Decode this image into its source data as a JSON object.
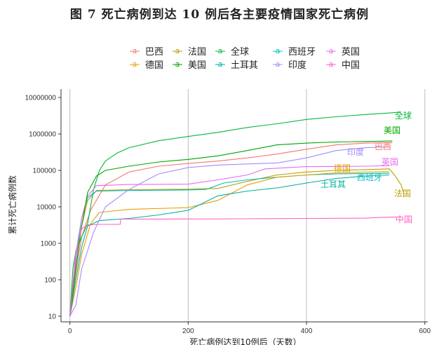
{
  "chart_data": {
    "type": "line",
    "title": "图 7  死亡病例到达 10 例后各主要疫情国家死亡病例",
    "xlabel": "死亡病例达到10例后（天数）",
    "ylabel": "累计死亡病例数",
    "xlim": [
      -15,
      605
    ],
    "ylim": [
      7,
      17000000
    ],
    "yscale": "log",
    "x_ticks": [
      0,
      200,
      400,
      600
    ],
    "y_ticks": [
      10,
      100,
      1000,
      10000,
      100000,
      1000000,
      10000000
    ],
    "y_tick_labels": [
      "10",
      "100",
      "1000",
      "10000",
      "100000",
      "1000000",
      "10000000"
    ],
    "grid": "vertical",
    "legend_position": "top",
    "series": [
      {
        "name": "巴西",
        "color": "#F8766D",
        "points": [
          [
            0,
            10
          ],
          [
            10,
            150
          ],
          [
            20,
            1500
          ],
          [
            35,
            8000
          ],
          [
            60,
            40000
          ],
          [
            100,
            90000
          ],
          [
            150,
            130000
          ],
          [
            200,
            155000
          ],
          [
            250,
            180000
          ],
          [
            300,
            220000
          ],
          [
            350,
            280000
          ],
          [
            400,
            380000
          ],
          [
            450,
            500000
          ],
          [
            500,
            560000
          ],
          [
            545,
            580000
          ]
        ],
        "end_label": "巴西"
      },
      {
        "name": "法国",
        "color": "#B79F00",
        "points": [
          [
            0,
            10
          ],
          [
            10,
            300
          ],
          [
            20,
            3000
          ],
          [
            30,
            15000
          ],
          [
            45,
            28000
          ],
          [
            100,
            29500
          ],
          [
            200,
            30500
          ],
          [
            250,
            32000
          ],
          [
            300,
            50000
          ],
          [
            350,
            75000
          ],
          [
            400,
            90000
          ],
          [
            450,
            100000
          ],
          [
            500,
            105000
          ],
          [
            540,
            110000
          ],
          [
            550,
            70000
          ],
          [
            560,
            40000
          ],
          [
            565,
            22000
          ]
        ],
        "end_label": "法国"
      },
      {
        "name": "全球",
        "color": "#00BA38",
        "points": [
          [
            0,
            10
          ],
          [
            5,
            200
          ],
          [
            10,
            600
          ],
          [
            20,
            1500
          ],
          [
            30,
            3500
          ],
          [
            40,
            30000
          ],
          [
            50,
            100000
          ],
          [
            60,
            180000
          ],
          [
            80,
            300000
          ],
          [
            100,
            420000
          ],
          [
            150,
            650000
          ],
          [
            200,
            850000
          ],
          [
            250,
            1100000
          ],
          [
            300,
            1500000
          ],
          [
            350,
            1900000
          ],
          [
            400,
            2500000
          ],
          [
            450,
            2950000
          ],
          [
            500,
            3400000
          ],
          [
            545,
            3800000
          ],
          [
            560,
            4000000
          ]
        ],
        "end_label": "全球"
      },
      {
        "name": "西班牙",
        "color": "#00BFC4",
        "points": [
          [
            0,
            10
          ],
          [
            10,
            500
          ],
          [
            20,
            5000
          ],
          [
            30,
            18000
          ],
          [
            45,
            27000
          ],
          [
            100,
            28000
          ],
          [
            200,
            29000
          ],
          [
            230,
            30000
          ],
          [
            260,
            45000
          ],
          [
            300,
            55000
          ],
          [
            350,
            65000
          ],
          [
            400,
            75000
          ],
          [
            450,
            80000
          ],
          [
            500,
            82000
          ],
          [
            540,
            83000
          ]
        ],
        "end_label": "西班牙"
      },
      {
        "name": "英国",
        "color": "#E76BF3",
        "points": [
          [
            0,
            10
          ],
          [
            10,
            300
          ],
          [
            20,
            5000
          ],
          [
            30,
            20000
          ],
          [
            45,
            38000
          ],
          [
            100,
            41000
          ],
          [
            200,
            42000
          ],
          [
            250,
            55000
          ],
          [
            300,
            75000
          ],
          [
            330,
            110000
          ],
          [
            400,
            127000
          ],
          [
            450,
            128000
          ],
          [
            500,
            130000
          ],
          [
            540,
            135000
          ]
        ],
        "end_label": "英国"
      },
      {
        "name": "德国",
        "color": "#E69F00",
        "points": [
          [
            0,
            10
          ],
          [
            10,
            60
          ],
          [
            20,
            500
          ],
          [
            35,
            3500
          ],
          [
            50,
            7000
          ],
          [
            100,
            8500
          ],
          [
            200,
            9500
          ],
          [
            250,
            15000
          ],
          [
            300,
            40000
          ],
          [
            350,
            65000
          ],
          [
            400,
            75000
          ],
          [
            450,
            85000
          ],
          [
            500,
            90000
          ],
          [
            540,
            92000
          ]
        ],
        "end_label": "德国"
      },
      {
        "name": "美国",
        "color": "#00A600",
        "points": [
          [
            0,
            10
          ],
          [
            10,
            200
          ],
          [
            20,
            3000
          ],
          [
            30,
            25000
          ],
          [
            45,
            70000
          ],
          [
            60,
            100000
          ],
          [
            100,
            130000
          ],
          [
            150,
            170000
          ],
          [
            200,
            200000
          ],
          [
            250,
            250000
          ],
          [
            300,
            350000
          ],
          [
            350,
            500000
          ],
          [
            400,
            560000
          ],
          [
            450,
            600000
          ],
          [
            500,
            620000
          ],
          [
            545,
            640000
          ]
        ],
        "end_label": "美国"
      },
      {
        "name": "土耳其",
        "color": "#00B0A0",
        "points": [
          [
            0,
            10
          ],
          [
            10,
            100
          ],
          [
            20,
            800
          ],
          [
            30,
            3000
          ],
          [
            50,
            4200
          ],
          [
            100,
            4800
          ],
          [
            150,
            6000
          ],
          [
            200,
            8000
          ],
          [
            250,
            20000
          ],
          [
            300,
            27000
          ],
          [
            350,
            33000
          ],
          [
            400,
            45000
          ],
          [
            450,
            60000
          ],
          [
            500,
            70000
          ],
          [
            540,
            75000
          ]
        ],
        "end_label": "土耳其"
      },
      {
        "name": "印度",
        "color": "#A58AFF",
        "points": [
          [
            0,
            10
          ],
          [
            10,
            20
          ],
          [
            20,
            200
          ],
          [
            40,
            2000
          ],
          [
            60,
            10000
          ],
          [
            100,
            30000
          ],
          [
            150,
            80000
          ],
          [
            200,
            120000
          ],
          [
            250,
            140000
          ],
          [
            300,
            150000
          ],
          [
            350,
            160000
          ],
          [
            400,
            220000
          ],
          [
            450,
            350000
          ],
          [
            500,
            420000
          ],
          [
            540,
            440000
          ]
        ],
        "end_label": "印度"
      },
      {
        "name": "中国",
        "color": "#FF61C3",
        "points": [
          [
            0,
            10
          ],
          [
            10,
            600
          ],
          [
            20,
            2500
          ],
          [
            30,
            3200
          ],
          [
            50,
            3300
          ],
          [
            85,
            3300
          ],
          [
            86,
            4600
          ],
          [
            150,
            4630
          ],
          [
            200,
            4640
          ],
          [
            300,
            4700
          ],
          [
            400,
            4800
          ],
          [
            500,
            4900
          ],
          [
            520,
            5100
          ],
          [
            560,
            5300
          ]
        ],
        "end_label": "中国"
      }
    ],
    "legend_order": [
      "巴西",
      "法国",
      "全球",
      "西班牙",
      "英国",
      "德国",
      "美国",
      "土耳其",
      "印度",
      "中国"
    ]
  }
}
